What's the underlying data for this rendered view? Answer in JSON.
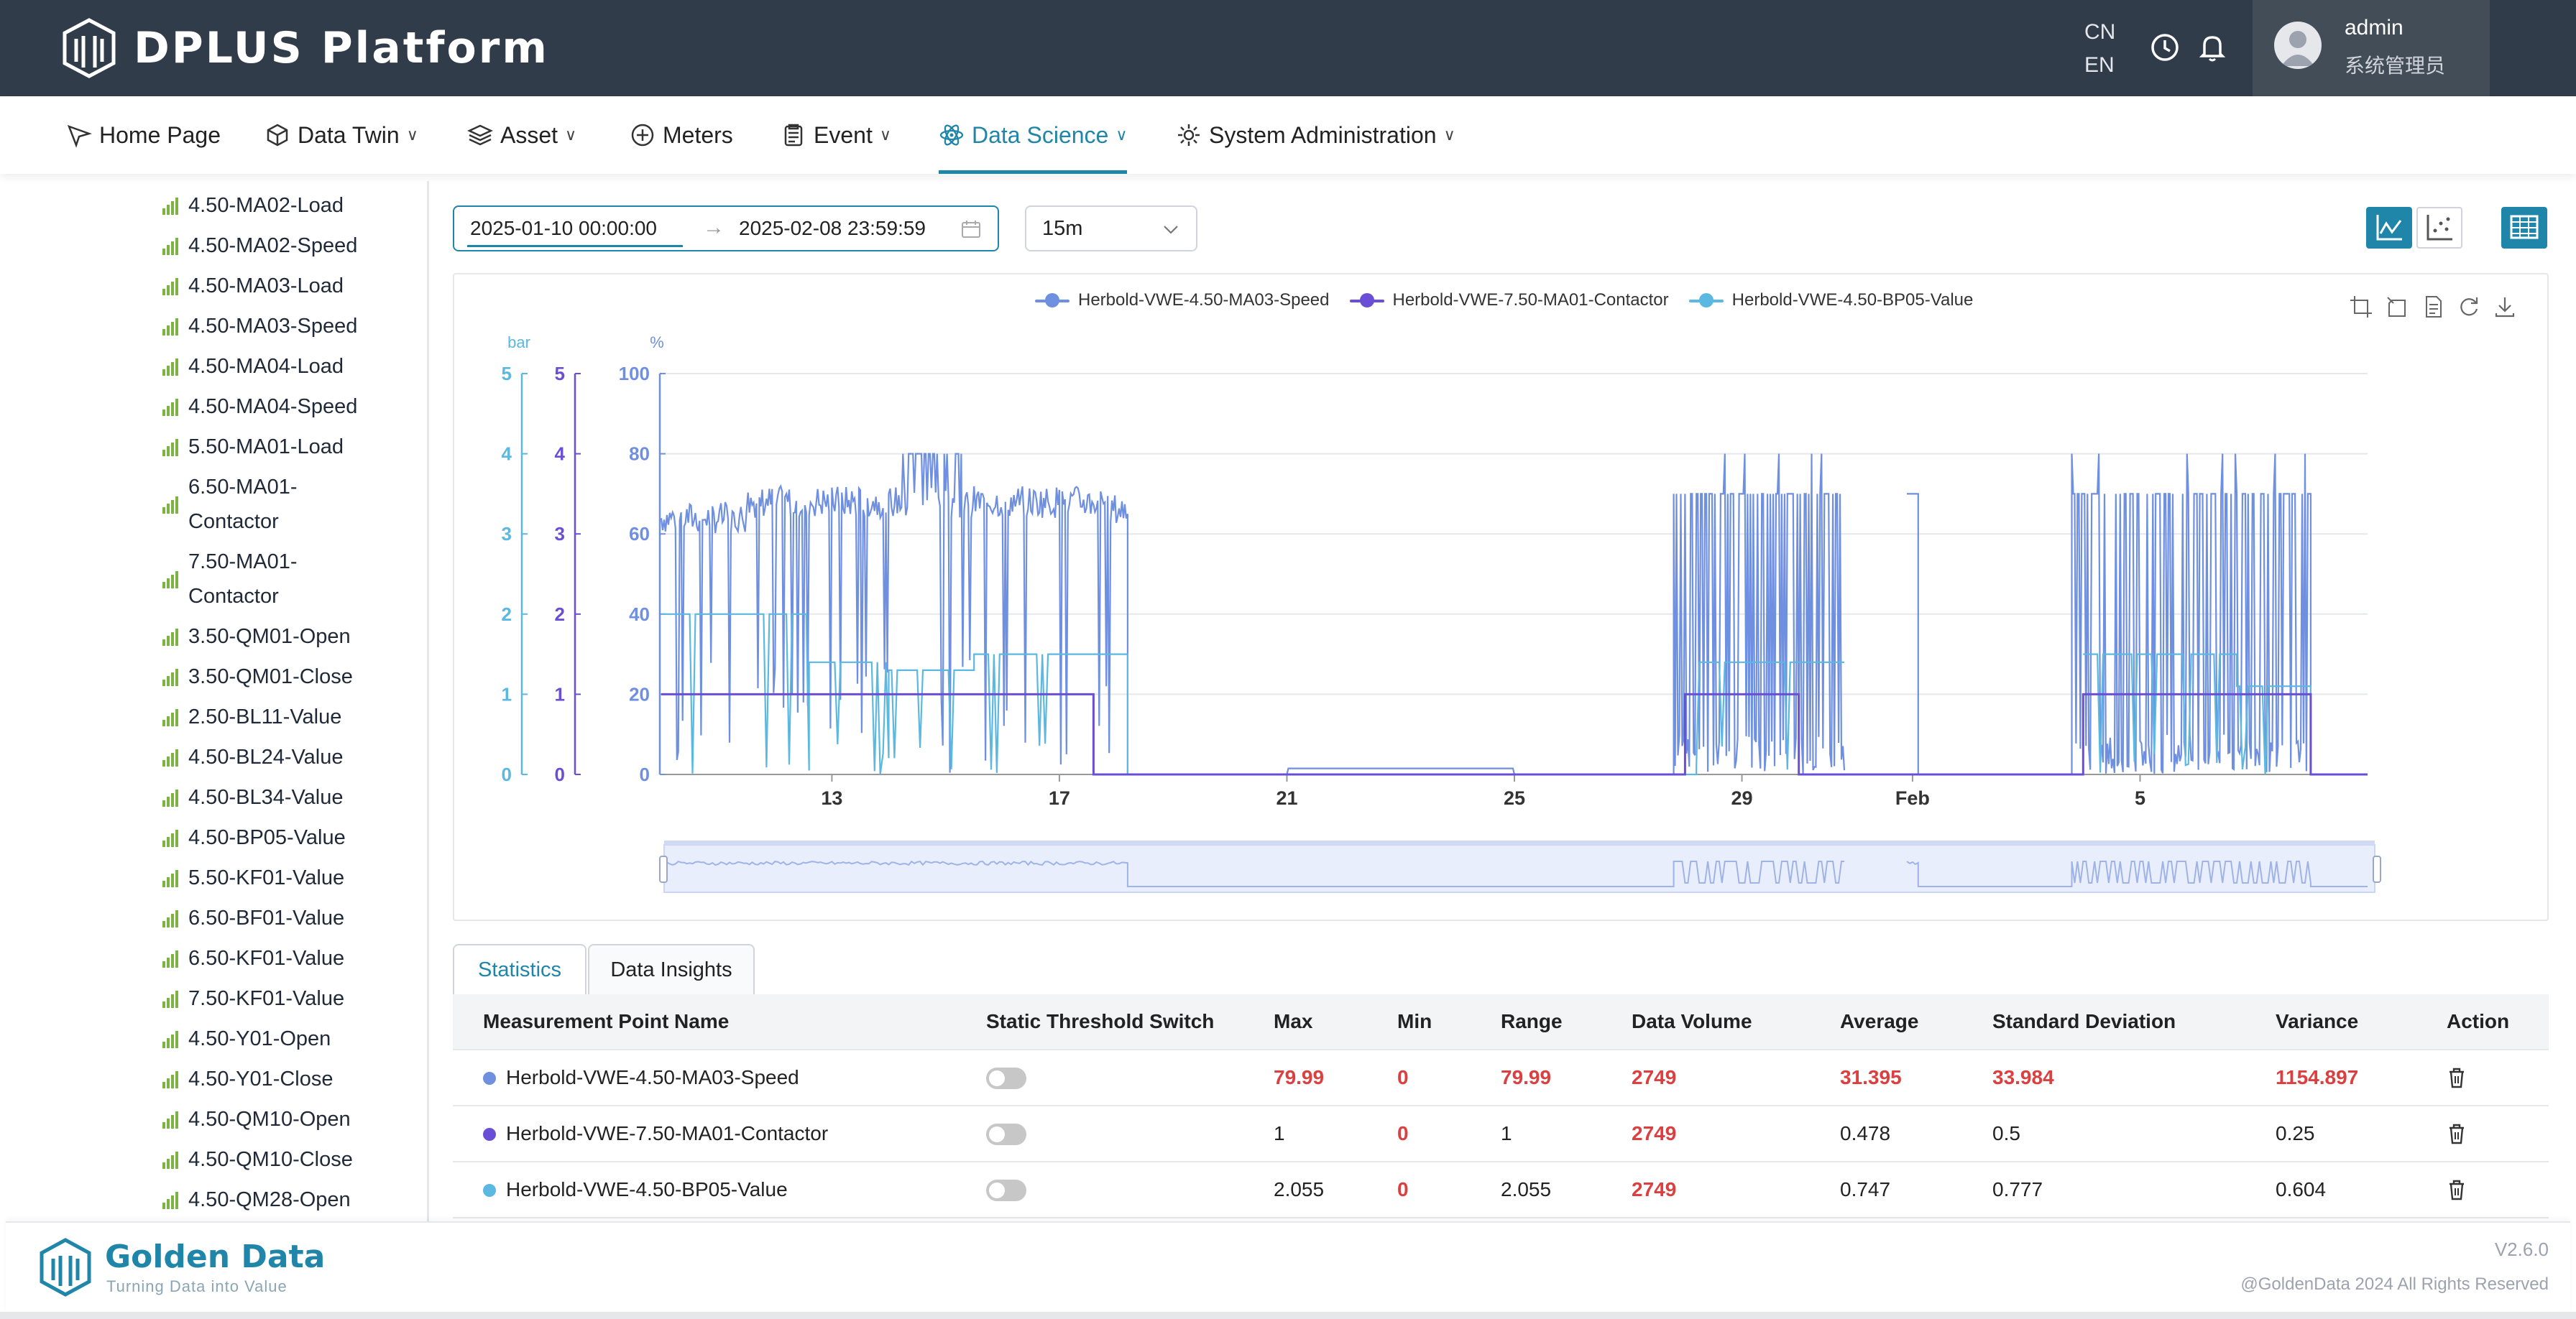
{
  "header": {
    "brand": "DPLUS Platform",
    "lang_cn": "CN",
    "lang_en": "EN",
    "user_name": "admin",
    "user_role": "系统管理员"
  },
  "nav": [
    {
      "label": "Home Page",
      "icon": "send-icon",
      "dropdown": false
    },
    {
      "label": "Data Twin",
      "icon": "cube-icon",
      "dropdown": true
    },
    {
      "label": "Asset",
      "icon": "layers-icon",
      "dropdown": true
    },
    {
      "label": "Meters",
      "icon": "meter-icon",
      "dropdown": false
    },
    {
      "label": "Event",
      "icon": "clipboard-icon",
      "dropdown": true
    },
    {
      "label": "Data Science",
      "icon": "atom-icon",
      "dropdown": true,
      "active": true
    },
    {
      "label": "System Administration",
      "icon": "gear-icon",
      "dropdown": true
    }
  ],
  "sidebar": {
    "items": [
      "4.50-MA02-Load",
      "4.50-MA02-Speed",
      "4.50-MA03-Load",
      "4.50-MA03-Speed",
      "4.50-MA04-Load",
      "4.50-MA04-Speed",
      "5.50-MA01-Load",
      "6.50-MA01-Contactor",
      "7.50-MA01-Contactor",
      "3.50-QM01-Open",
      "3.50-QM01-Close",
      "2.50-BL11-Value",
      "4.50-BL24-Value",
      "4.50-BL34-Value",
      "4.50-BP05-Value",
      "5.50-KF01-Value",
      "6.50-BF01-Value",
      "6.50-KF01-Value",
      "7.50-KF01-Value",
      "4.50-Y01-Open",
      "4.50-Y01-Close",
      "4.50-QM10-Open",
      "4.50-QM10-Close",
      "4.50-QM28-Open"
    ],
    "two_line": {
      "7": [
        "6.50-MA01-",
        "Contactor"
      ],
      "8": [
        "7.50-MA01-",
        "Contactor"
      ]
    },
    "signal_color": "#7cb342"
  },
  "controls": {
    "start_date": "2025-01-10 00:00:00",
    "arrow": "→",
    "end_date": "2025-02-08 23:59:59",
    "interval": "15m"
  },
  "chart_data": {
    "type": "line",
    "legend_position": "top-center",
    "series": [
      {
        "name": "Herbold-VWE-4.50-MA03-Speed",
        "color": "#6f8fe0",
        "axis": "%"
      },
      {
        "name": "Herbold-VWE-7.50-MA01-Contactor",
        "color": "#6a4fd6",
        "axis": "left-inner"
      },
      {
        "name": "Herbold-VWE-4.50-BP05-Value",
        "color": "#5bb8e0",
        "axis": "bar"
      }
    ],
    "y_axes": [
      {
        "label": "bar",
        "min": 0,
        "max": 5,
        "ticks": [
          "0",
          "1",
          "2",
          "3",
          "4",
          "5"
        ],
        "color": "#5bb8e0"
      },
      {
        "label": "",
        "min": 0,
        "max": 5,
        "ticks": [
          "0",
          "1",
          "2",
          "3",
          "4",
          "5"
        ],
        "color": "#6a4fd6"
      },
      {
        "label": "%",
        "min": 0,
        "max": 100,
        "ticks": [
          "0",
          "20",
          "40",
          "60",
          "80",
          "100"
        ],
        "color": "#6f8fe0"
      }
    ],
    "x_ticks": [
      "13",
      "17",
      "21",
      "25",
      "29",
      "Feb",
      "5"
    ],
    "x_range": [
      "2025-01-10",
      "2025-02-08"
    ],
    "grid": true,
    "speed_segments": [
      {
        "from": 10.0,
        "to": 18.2,
        "level": 65,
        "pattern": "high"
      },
      {
        "from": 18.2,
        "to": 27.8,
        "level": 0
      },
      {
        "from": 27.8,
        "to": 30.8,
        "level": 70,
        "pattern": "burst"
      },
      {
        "from": 30.8,
        "to": 31.9,
        "level": null
      },
      {
        "from": 31.9,
        "to": 32.1,
        "level": 70
      },
      {
        "from": 32.1,
        "to": 34.8,
        "level": 0
      },
      {
        "from": 34.8,
        "to": 39.0,
        "level": 70,
        "pattern": "burst"
      },
      {
        "from": 39.0,
        "to": 40.0,
        "level": 0
      }
    ],
    "contactor_segments": [
      {
        "from": 10.0,
        "to": 17.6,
        "value": 1
      },
      {
        "from": 17.6,
        "to": 28.0,
        "value": 0
      },
      {
        "from": 28.0,
        "to": 30.0,
        "value": 1
      },
      {
        "from": 30.0,
        "to": 35.0,
        "value": 0
      },
      {
        "from": 35.0,
        "to": 39.0,
        "value": 1
      },
      {
        "from": 39.0,
        "to": 40.0,
        "value": 0
      }
    ],
    "bp05_segments": [
      {
        "from": 10.0,
        "to": 11.1,
        "value": 2.0
      },
      {
        "from": 11.1,
        "to": 12.6,
        "value": 2.0
      },
      {
        "from": 12.6,
        "to": 14.0,
        "value": 1.4
      },
      {
        "from": 14.0,
        "to": 15.5,
        "value": 1.3
      },
      {
        "from": 15.5,
        "to": 17.6,
        "value": 1.5
      },
      {
        "from": 17.6,
        "to": 18.2,
        "value": 1.5
      },
      {
        "from": 18.2,
        "to": 28.2,
        "value": 0
      },
      {
        "from": 28.2,
        "to": 30.8,
        "value": 1.4
      },
      {
        "from": 35.0,
        "to": 37.7,
        "value": 1.5
      },
      {
        "from": 37.7,
        "to": 39.0,
        "value": 1.1
      },
      {
        "from": 39.0,
        "to": 40.0,
        "value": 0
      }
    ]
  },
  "tabs": [
    {
      "label": "Statistics",
      "active": true
    },
    {
      "label": "Data Insights",
      "active": false
    }
  ],
  "table": {
    "headers": [
      "Measurement Point Name",
      "Static Threshold Switch",
      "Max",
      "Min",
      "Range",
      "Data Volume",
      "Average",
      "Standard Deviation",
      "Variance",
      "Action"
    ],
    "rows": [
      {
        "name": "Herbold-VWE-4.50-MA03-Speed",
        "color": "#6f8fe0",
        "max": "79.99",
        "min": "0",
        "range": "79.99",
        "volume": "2749",
        "average": "31.395",
        "std": "33.984",
        "variance": "1154.897",
        "highlight": true
      },
      {
        "name": "Herbold-VWE-7.50-MA01-Contactor",
        "color": "#6a4fd6",
        "max": "1",
        "min": "0",
        "range": "1",
        "volume": "2749",
        "average": "0.478",
        "std": "0.5",
        "variance": "0.25",
        "highlight": false
      },
      {
        "name": "Herbold-VWE-4.50-BP05-Value",
        "color": "#5bb8e0",
        "max": "2.055",
        "min": "0",
        "range": "2.055",
        "volume": "2749",
        "average": "0.747",
        "std": "0.777",
        "variance": "0.604",
        "highlight": false
      }
    ]
  },
  "footer": {
    "brand": "Golden Data",
    "tagline": "Turning Data into Value",
    "version": "V2.6.0",
    "copyright": "@GoldenData 2024 All Rights Reserved"
  },
  "colors": {
    "accent": "#1f86a9",
    "header_bg": "#303c4a",
    "alert_red": "#dc3f3f"
  }
}
